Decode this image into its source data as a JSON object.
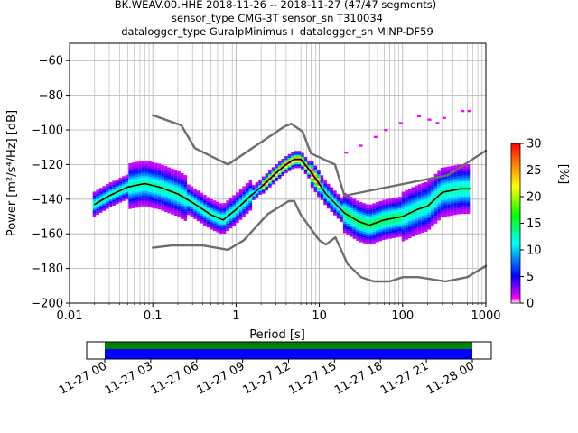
{
  "chart_data": [
    {
      "type": "heatmap",
      "title_lines": [
        "BK.WEAV.00.HHE   2018-11-26 -- 2018-11-27  (47/47 segments)",
        "sensor_type CMG-3T sensor_sn T310034",
        "datalogger_type GuralpMinimus+ datalogger_sn MINP-DF59"
      ],
      "xlabel": "Period [s]",
      "ylabel": "Power [m²/s⁴/Hz] [dB]",
      "x_scale": "log",
      "xlim": [
        0.01,
        1000
      ],
      "ylim": [
        -200,
        -50
      ],
      "x_ticks": [
        "0.01",
        "0.1",
        "1",
        "10",
        "100",
        "1000"
      ],
      "y_ticks": [
        "−200",
        "−180",
        "−160",
        "−140",
        "−120",
        "−100",
        "−80",
        "−60"
      ],
      "grid": true,
      "colorbar": {
        "label": "[%]",
        "range": [
          0,
          30
        ],
        "ticks": [
          "0",
          "5",
          "10",
          "15",
          "20",
          "25",
          "30"
        ],
        "colors": [
          "#ffffff",
          "#ff00ff",
          "#0000ff",
          "#00ffff",
          "#00ff00",
          "#ffff00",
          "#ff8000",
          "#ff0000"
        ]
      },
      "series": [
        {
          "role": "mode",
          "color": "#000000",
          "x": [
            0.02,
            0.03,
            0.05,
            0.08,
            0.12,
            0.2,
            0.3,
            0.5,
            0.7,
            1,
            1.5,
            2,
            3,
            4,
            5,
            6,
            7,
            9,
            12,
            20,
            30,
            40,
            60,
            100,
            150,
            200,
            300,
            500,
            650
          ],
          "y": [
            -143,
            -138,
            -133,
            -131,
            -133,
            -137,
            -142,
            -149,
            -152,
            -146,
            -138,
            -133,
            -125,
            -120,
            -117,
            -117,
            -121,
            -128,
            -137,
            -148,
            -153,
            -155,
            -152,
            -150,
            -146,
            -144,
            -136,
            -134,
            -134
          ]
        },
        {
          "role": "noise-model-high",
          "color": "#6e6e6e",
          "x": [
            0.1,
            0.22,
            0.32,
            0.8,
            3.8,
            4.6,
            6.3,
            7.9,
            15.4,
            20,
            354.8,
            1000
          ],
          "y": [
            -91.5,
            -97.4,
            -110.5,
            -120,
            -98,
            -96.5,
            -101,
            -113.5,
            -120,
            -138,
            -126,
            -112
          ]
        },
        {
          "role": "noise-model-low",
          "color": "#6e6e6e",
          "x": [
            0.1,
            0.17,
            0.4,
            0.8,
            1.24,
            2.4,
            4.3,
            5,
            6,
            10,
            12,
            15.6,
            21.9,
            31.6,
            45,
            70,
            101,
            154,
            328,
            600,
            1000
          ],
          "y": [
            -168,
            -166.7,
            -166.7,
            -169.2,
            -163.7,
            -148.6,
            -141.1,
            -141.1,
            -149,
            -163.8,
            -166.2,
            -162.1,
            -177.5,
            -185,
            -187.5,
            -187.5,
            -185,
            -185,
            -187.5,
            -185,
            -178.5
          ]
        }
      ]
    },
    {
      "type": "timeline",
      "x_ticks": [
        "11-27 00",
        "11-27 03",
        "11-27 06",
        "11-27 09",
        "11-27 12",
        "11-27 15",
        "11-27 18",
        "11-27 21",
        "11-28 00"
      ],
      "bars": [
        {
          "color": "#008000",
          "start": "11-27 00",
          "end": "11-28 00"
        },
        {
          "color": "#0000ff",
          "start": "11-27 00",
          "end": "11-28 00"
        }
      ]
    }
  ]
}
